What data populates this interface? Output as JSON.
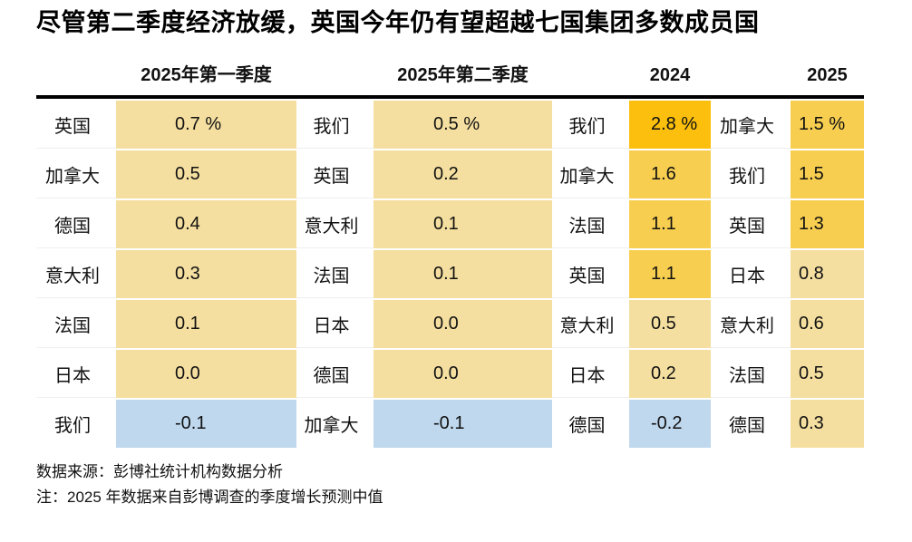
{
  "title": "尽管第二季度经济放缓，英国今年仍有望超越七国集团多数成员国",
  "palette": {
    "hot": "#FCBF0D",
    "warm": "#F7CE4F",
    "mild": "#F5DFA0",
    "negative_blue": "#BFD8EE",
    "rule": "#000000"
  },
  "columns": [
    {
      "header": "2025年第一季度",
      "rows": [
        {
          "label": "英国",
          "value": "0.7 %",
          "bg": "background:#F5DFA0"
        },
        {
          "label": "加拿大",
          "value": "0.5",
          "bg": "background:#F5DFA0"
        },
        {
          "label": "德国",
          "value": "0.4",
          "bg": "background:#F5DFA0"
        },
        {
          "label": "意大利",
          "value": "0.3",
          "bg": "background:#F5DFA0"
        },
        {
          "label": "法国",
          "value": "0.1",
          "bg": "background:#F5DFA0"
        },
        {
          "label": "日本",
          "value": "0.0",
          "bg": "background:#F5DFA0"
        },
        {
          "label": "我们",
          "value": "-0.1",
          "bg": "background:#BFD8EE"
        }
      ]
    },
    {
      "header": "2025年第二季度",
      "rows": [
        {
          "label": "我们",
          "value": "0.5 %",
          "bg": "background:#F5DFA0"
        },
        {
          "label": "英国",
          "value": "0.2",
          "bg": "background:#F5DFA0"
        },
        {
          "label": "意大利",
          "value": "0.1",
          "bg": "background:#F5DFA0"
        },
        {
          "label": "法国",
          "value": "0.1",
          "bg": "background:#F5DFA0"
        },
        {
          "label": "日本",
          "value": "0.0",
          "bg": "background:#F5DFA0"
        },
        {
          "label": "德国",
          "value": "0.0",
          "bg": "background:#F5DFA0"
        },
        {
          "label": "加拿大",
          "value": "-0.1",
          "bg": "background:#BFD8EE"
        }
      ]
    },
    {
      "header": "2024",
      "rows": [
        {
          "label": "我们",
          "value": "2.8 %",
          "bg": "background:#FCBF0D"
        },
        {
          "label": "加拿大",
          "value": "1.6",
          "bg": "background:#F7CE4F"
        },
        {
          "label": "法国",
          "value": "1.1",
          "bg": "background:#F7CE4F"
        },
        {
          "label": "英国",
          "value": "1.1",
          "bg": "background:#F7CE4F"
        },
        {
          "label": "意大利",
          "value": "0.5",
          "bg": "background:#F5DFA0"
        },
        {
          "label": "日本",
          "value": "0.2",
          "bg": "background:#F5DFA0"
        },
        {
          "label": "德国",
          "value": "-0.2",
          "bg": "background:#BFD8EE"
        }
      ]
    },
    {
      "header": "2025",
      "rows": [
        {
          "label": "加拿大",
          "value": "1.5 %",
          "bg": "background:#F7CE4F"
        },
        {
          "label": "我们",
          "value": "1.5",
          "bg": "background:#F7CE4F"
        },
        {
          "label": "英国",
          "value": "1.3",
          "bg": "background:#F7CE4F"
        },
        {
          "label": "日本",
          "value": "0.8",
          "bg": "background:#F5DFA0"
        },
        {
          "label": "意大利",
          "value": "0.6",
          "bg": "background:#F5DFA0"
        },
        {
          "label": "法国",
          "value": "0.5",
          "bg": "background:#F5DFA0"
        },
        {
          "label": "德国",
          "value": "0.3",
          "bg": "background:#F5DFA0"
        }
      ]
    }
  ],
  "footer": {
    "source": "数据来源：彭博社统计机构数据分析",
    "note": "注：2025 年数据来自彭博调查的季度增长预测中值"
  },
  "chart_data": {
    "type": "table",
    "title": "尽管第二季度经济放缓，英国今年仍有望超越七国集团多数成员国",
    "unit": "%",
    "note": "heatmap-style ranked table; gold shades = higher growth, blue = negative",
    "periods": [
      {
        "label": "2025年第一季度",
        "entries": [
          [
            "英国",
            0.7
          ],
          [
            "加拿大",
            0.5
          ],
          [
            "德国",
            0.4
          ],
          [
            "意大利",
            0.3
          ],
          [
            "法国",
            0.1
          ],
          [
            "日本",
            0.0
          ],
          [
            "我们",
            -0.1
          ]
        ]
      },
      {
        "label": "2025年第二季度",
        "entries": [
          [
            "我们",
            0.5
          ],
          [
            "英国",
            0.2
          ],
          [
            "意大利",
            0.1
          ],
          [
            "法国",
            0.1
          ],
          [
            "日本",
            0.0
          ],
          [
            "德国",
            0.0
          ],
          [
            "加拿大",
            -0.1
          ]
        ]
      },
      {
        "label": "2024",
        "entries": [
          [
            "我们",
            2.8
          ],
          [
            "加拿大",
            1.6
          ],
          [
            "法国",
            1.1
          ],
          [
            "英国",
            1.1
          ],
          [
            "意大利",
            0.5
          ],
          [
            "日本",
            0.2
          ],
          [
            "德国",
            -0.2
          ]
        ]
      },
      {
        "label": "2025",
        "entries": [
          [
            "加拿大",
            1.5
          ],
          [
            "我们",
            1.5
          ],
          [
            "英国",
            1.3
          ],
          [
            "日本",
            0.8
          ],
          [
            "意大利",
            0.6
          ],
          [
            "法国",
            0.5
          ],
          [
            "德国",
            0.3
          ]
        ]
      }
    ]
  }
}
